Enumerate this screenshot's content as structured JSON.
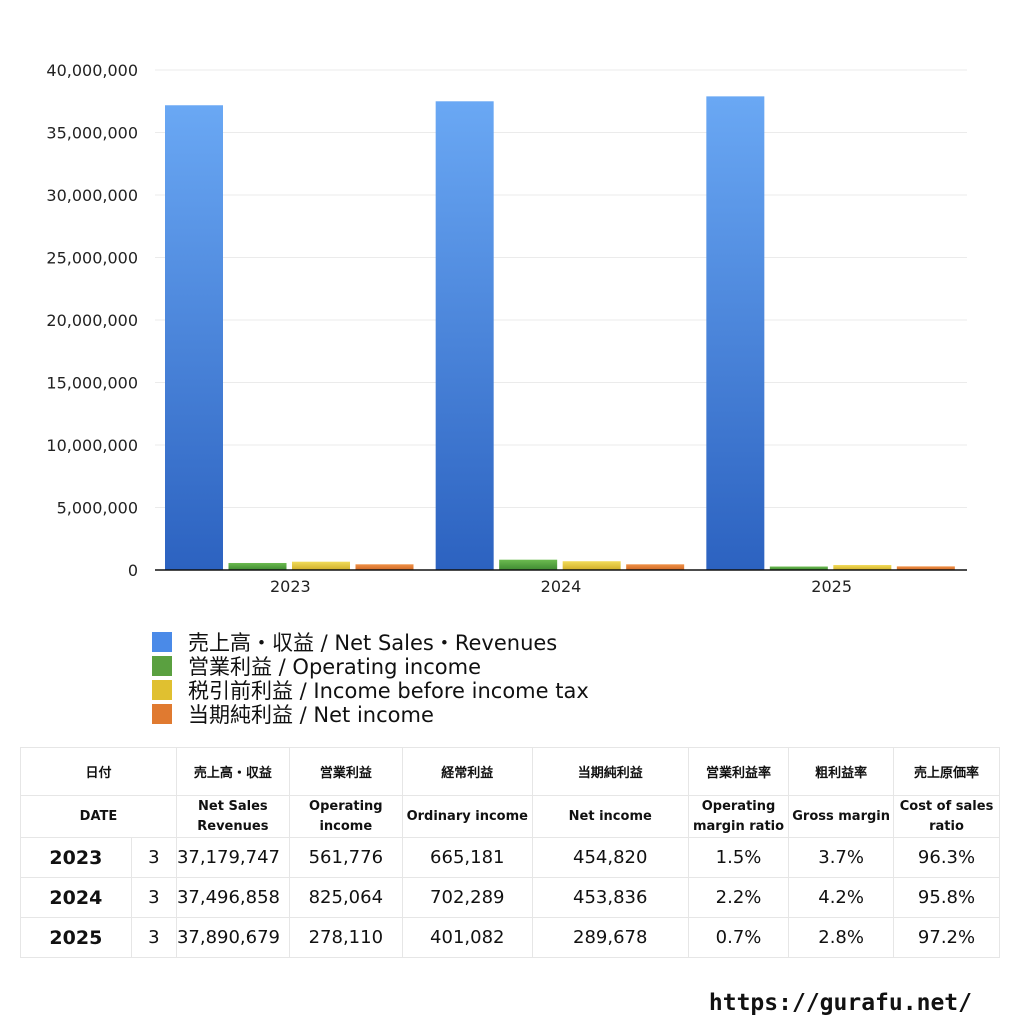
{
  "chart_data": {
    "type": "bar",
    "categories": [
      "2023",
      "2024",
      "2025"
    ],
    "series": [
      {
        "name": "売上高・収益 / Net Sales・Revenues",
        "color": "#4a8ae8",
        "values": [
          37179747,
          37496858,
          37890679
        ]
      },
      {
        "name": "営業利益 / Operating income",
        "color": "#5aa040",
        "values": [
          561776,
          825064,
          278110
        ]
      },
      {
        "name": "税引前利益 / Income before income tax",
        "color": "#e0c030",
        "values": [
          665181,
          702289,
          401082
        ]
      },
      {
        "name": "当期純利益 / Net income",
        "color": "#e07a30",
        "values": [
          454820,
          453836,
          289678
        ]
      }
    ],
    "yticks": [
      "0",
      "5,000,000",
      "10,000,000",
      "15,000,000",
      "20,000,000",
      "25,000,000",
      "30,000,000",
      "35,000,000",
      "40,000,000"
    ],
    "ylim": [
      0,
      40000000
    ],
    "grid": true,
    "legend": "bottom-left"
  },
  "table": {
    "header_jp": [
      "日付",
      "",
      "売上高・収益",
      "営業利益",
      "経常利益",
      "当期純利益",
      "営業利益率",
      "粗利益率",
      "売上原価率"
    ],
    "header_en": [
      "DATE",
      "",
      "Net Sales\nRevenues",
      "Operating\nincome",
      "Ordinary income",
      "Net income",
      "Operating\nmargin ratio",
      "Gross margin",
      "Cost of sales\nratio"
    ],
    "rows": [
      [
        "2023",
        "3",
        "37,179,747",
        "561,776",
        "665,181",
        "454,820",
        "1.5%",
        "3.7%",
        "96.3%"
      ],
      [
        "2024",
        "3",
        "37,496,858",
        "825,064",
        "702,289",
        "453,836",
        "2.2%",
        "4.2%",
        "95.8%"
      ],
      [
        "2025",
        "3",
        "37,890,679",
        "278,110",
        "401,082",
        "289,678",
        "0.7%",
        "2.8%",
        "97.2%"
      ]
    ]
  },
  "footer": {
    "url": "https://gurafu.net/"
  }
}
